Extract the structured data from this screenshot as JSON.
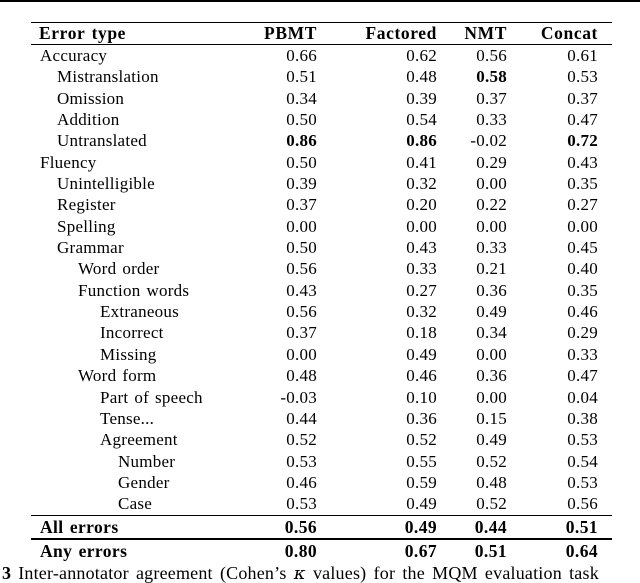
{
  "page": {
    "background": "#ffffff",
    "text_color": "#000000"
  },
  "table": {
    "columns": [
      {
        "label": "Error type"
      },
      {
        "label": "PBMT"
      },
      {
        "label": "Factored"
      },
      {
        "label": "NMT"
      },
      {
        "label": "Concat"
      }
    ],
    "rows": [
      {
        "label": "Accuracy",
        "indent": 0,
        "values": [
          "0.66",
          "0.62",
          "0.56",
          "0.61"
        ],
        "bold": []
      },
      {
        "label": "Mistranslation",
        "indent": 1,
        "values": [
          "0.51",
          "0.48",
          "0.58",
          "0.53"
        ],
        "bold": [
          2
        ]
      },
      {
        "label": "Omission",
        "indent": 1,
        "values": [
          "0.34",
          "0.39",
          "0.37",
          "0.37"
        ],
        "bold": []
      },
      {
        "label": "Addition",
        "indent": 1,
        "values": [
          "0.50",
          "0.54",
          "0.33",
          "0.47"
        ],
        "bold": []
      },
      {
        "label": "Untranslated",
        "indent": 1,
        "values": [
          "0.86",
          "0.86",
          "-0.02",
          "0.72"
        ],
        "bold": [
          0,
          1,
          3
        ]
      },
      {
        "label": "Fluency",
        "indent": 0,
        "values": [
          "0.50",
          "0.41",
          "0.29",
          "0.43"
        ],
        "bold": []
      },
      {
        "label": "Unintelligible",
        "indent": 1,
        "values": [
          "0.39",
          "0.32",
          "0.00",
          "0.35"
        ],
        "bold": []
      },
      {
        "label": "Register",
        "indent": 1,
        "values": [
          "0.37",
          "0.20",
          "0.22",
          "0.27"
        ],
        "bold": []
      },
      {
        "label": "Spelling",
        "indent": 1,
        "values": [
          "0.00",
          "0.00",
          "0.00",
          "0.00"
        ],
        "bold": []
      },
      {
        "label": "Grammar",
        "indent": 1,
        "values": [
          "0.50",
          "0.43",
          "0.33",
          "0.45"
        ],
        "bold": []
      },
      {
        "label": "Word order",
        "indent": 2,
        "values": [
          "0.56",
          "0.33",
          "0.21",
          "0.40"
        ],
        "bold": []
      },
      {
        "label": "Function words",
        "indent": 2,
        "values": [
          "0.43",
          "0.27",
          "0.36",
          "0.35"
        ],
        "bold": []
      },
      {
        "label": "Extraneous",
        "indent": 3,
        "values": [
          "0.56",
          "0.32",
          "0.49",
          "0.46"
        ],
        "bold": []
      },
      {
        "label": "Incorrect",
        "indent": 3,
        "values": [
          "0.37",
          "0.18",
          "0.34",
          "0.29"
        ],
        "bold": []
      },
      {
        "label": "Missing",
        "indent": 3,
        "values": [
          "0.00",
          "0.49",
          "0.00",
          "0.33"
        ],
        "bold": []
      },
      {
        "label": "Word form",
        "indent": 2,
        "values": [
          "0.48",
          "0.46",
          "0.36",
          "0.47"
        ],
        "bold": []
      },
      {
        "label": "Part of speech",
        "indent": 3,
        "values": [
          "-0.03",
          "0.10",
          "0.00",
          "0.04"
        ],
        "bold": []
      },
      {
        "label": "Tense...",
        "indent": 3,
        "values": [
          "0.44",
          "0.36",
          "0.15",
          "0.38"
        ],
        "bold": []
      },
      {
        "label": "Agreement",
        "indent": 3,
        "values": [
          "0.52",
          "0.52",
          "0.49",
          "0.53"
        ],
        "bold": []
      },
      {
        "label": "Number",
        "indent": 4,
        "values": [
          "0.53",
          "0.55",
          "0.52",
          "0.54"
        ],
        "bold": []
      },
      {
        "label": "Gender",
        "indent": 4,
        "values": [
          "0.46",
          "0.59",
          "0.48",
          "0.53"
        ],
        "bold": []
      },
      {
        "label": "Case",
        "indent": 4,
        "values": [
          "0.53",
          "0.49",
          "0.52",
          "0.56"
        ],
        "bold": []
      }
    ],
    "summary_rows": [
      {
        "label": "All errors",
        "values": [
          "0.56",
          "0.49",
          "0.44",
          "0.51"
        ]
      },
      {
        "label": "Any errors",
        "values": [
          "0.80",
          "0.67",
          "0.51",
          "0.64"
        ]
      }
    ]
  },
  "caption": {
    "number": "3",
    "text_before_kappa": "Inter-annotator agreement (Cohen’s ",
    "kappa": "κ",
    "text_after_kappa": " values) for the MQM evaluation task"
  }
}
